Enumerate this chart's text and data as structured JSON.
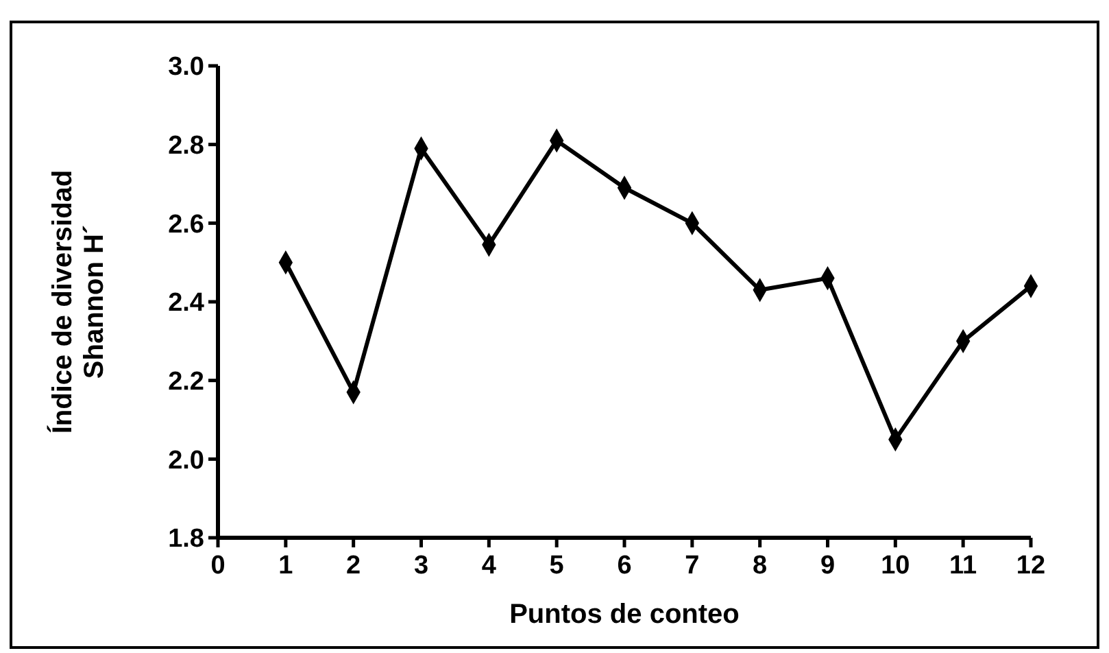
{
  "chart_data": {
    "type": "line",
    "xlabel": "Puntos de conteo",
    "ylabel": "Índice de diversidad\nShannon H´",
    "x": [
      1,
      2,
      3,
      4,
      5,
      6,
      7,
      8,
      9,
      10,
      11,
      12
    ],
    "series": [
      {
        "color": "#000000",
        "values": [
          2.5,
          2.17,
          2.79,
          2.545,
          2.81,
          2.69,
          2.6,
          2.43,
          2.46,
          2.05,
          2.3,
          2.44
        ]
      }
    ],
    "xlim": [
      0,
      12
    ],
    "xticks": [
      0,
      1,
      2,
      3,
      4,
      5,
      6,
      7,
      8,
      9,
      10,
      11,
      12
    ],
    "ylim": [
      1.8,
      3.0
    ],
    "yticks": [
      {
        "value": 1.8,
        "label": "1.8"
      },
      {
        "value": 2.0,
        "label": "2.0"
      },
      {
        "value": 2.2,
        "label": "2.2"
      },
      {
        "value": 2.4,
        "label": "2.4"
      },
      {
        "value": 2.6,
        "label": "2.6"
      },
      {
        "value": 2.8,
        "label": "2.8"
      },
      {
        "value": 3.0,
        "label": "3.0"
      }
    ],
    "grid": false,
    "marker": "diamond",
    "line_style": "solid"
  }
}
